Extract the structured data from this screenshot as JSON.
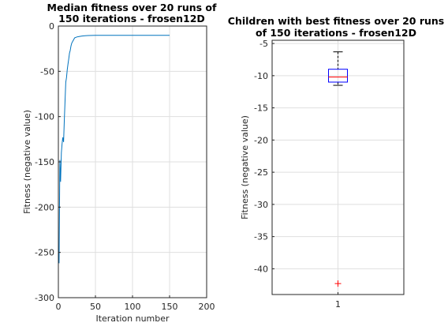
{
  "chart_data": [
    {
      "type": "line",
      "title": [
        "Median fitness over 20 runs of",
        "150 iterations - frosen12D"
      ],
      "xlabel": "Iteration number",
      "ylabel": "Fitness (negative value)",
      "xlim": [
        0,
        200
      ],
      "ylim": [
        -300,
        0
      ],
      "grid": true,
      "x_ticks": [
        "0",
        "50",
        "100",
        "150",
        "200"
      ],
      "y_ticks": [
        "0",
        "-50",
        "-100",
        "-150",
        "-200",
        "-250",
        "-300"
      ],
      "color": "#0072BD",
      "series": [
        {
          "x": [
            1,
            2,
            3,
            4,
            5,
            6,
            7,
            8,
            9,
            10,
            11,
            12,
            13,
            14,
            15,
            16,
            17,
            18,
            20,
            22,
            25,
            28,
            32,
            36,
            40,
            50,
            60,
            80,
            100,
            120,
            150
          ],
          "values": [
            -262,
            -148,
            -172,
            -140,
            -130,
            -123,
            -128,
            -105,
            -82,
            -62,
            -57,
            -48,
            -42,
            -36,
            -30,
            -27,
            -22,
            -19,
            -16,
            -13,
            -12,
            -11.5,
            -11,
            -10.7,
            -10.5,
            -10.3,
            -10.2,
            -10.2,
            -10.2,
            -10.2,
            -10.2
          ]
        }
      ]
    },
    {
      "type": "box",
      "title": [
        "Children with best fitness over 20 runs",
        "of 150 iterations - frosen12D"
      ],
      "xlabel": "",
      "ylabel": "Fitness (negative value)",
      "ylim": [
        -44,
        -4.5
      ],
      "grid": true,
      "categories": [
        "1"
      ],
      "y_ticks": [
        "-5",
        "-10",
        "-15",
        "-20",
        "-25",
        "-30",
        "-35",
        "-40"
      ],
      "box": {
        "whisker_high": -6.3,
        "q3": -9.0,
        "median": -10.2,
        "q1": -11.0,
        "whisker_low": -11.5,
        "outliers": [
          -42.3
        ]
      },
      "box_color": "#0000FF",
      "median_color": "#FF0000",
      "outlier_color": "#FF0000"
    }
  ]
}
